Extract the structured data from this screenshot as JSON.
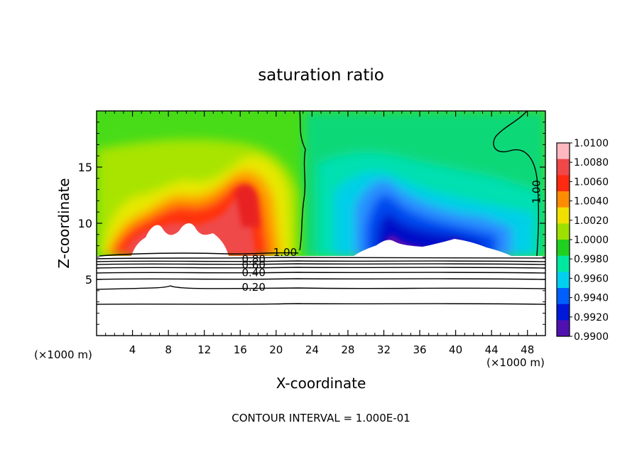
{
  "chart_data": {
    "type": "heatmap",
    "title": "saturation ratio",
    "xlabel": "X-coordinate",
    "ylabel": "Z-coordinate",
    "x_unit_left": "(×1000 m)",
    "x_unit_right": "(×1000 m)",
    "xlim": [
      0,
      50
    ],
    "ylim": [
      0,
      20
    ],
    "x_ticks": [
      "4",
      "8",
      "12",
      "16",
      "20",
      "24",
      "28",
      "32",
      "36",
      "40",
      "44",
      "48"
    ],
    "x_tick_values": [
      4,
      8,
      12,
      16,
      20,
      24,
      28,
      32,
      36,
      40,
      44,
      48
    ],
    "y_ticks": [
      "5",
      "10",
      "15"
    ],
    "y_tick_values": [
      5,
      10,
      15
    ],
    "footer": "CONTOUR INTERVAL = 1.000E-01",
    "contour_labels": [
      {
        "text": "1.00",
        "x": 21.0,
        "z": 7.4
      },
      {
        "text": "1.00",
        "x": 49.0,
        "z": 12.8
      },
      {
        "text": "0.80",
        "x": 17.5,
        "z": 6.8
      },
      {
        "text": "0.60",
        "x": 17.5,
        "z": 6.3
      },
      {
        "text": "0.40",
        "x": 17.5,
        "z": 5.6
      },
      {
        "text": "0.20",
        "x": 17.5,
        "z": 4.3
      }
    ],
    "colorbar": {
      "labels": [
        "1.0100",
        "1.0080",
        "1.0060",
        "1.0040",
        "1.0020",
        "1.0000",
        "0.9980",
        "0.9960",
        "0.9940",
        "0.9920",
        "0.9900"
      ],
      "colors": [
        "#ffb8c0",
        "#f04848",
        "#ff2a10",
        "#ff8c00",
        "#f0e000",
        "#9ee000",
        "#20d020",
        "#00e8a0",
        "#00d0f0",
        "#0060ff",
        "#0018d8",
        "#5010b0"
      ],
      "vmin": 0.99,
      "vmax": 1.01
    }
  }
}
